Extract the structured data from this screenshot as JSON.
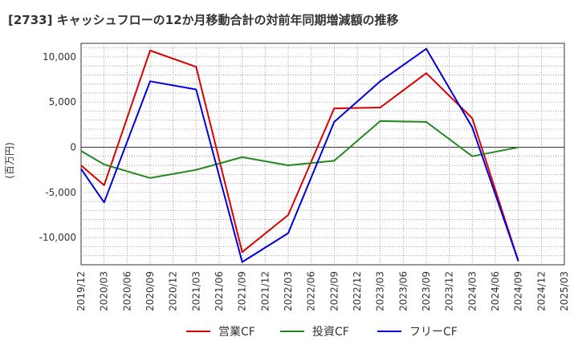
{
  "chart_data": {
    "type": "line",
    "title": "[2733]  キャッシュフローの12か月移動合計の対前年同期増減額の推移",
    "ylabel": "(百万円)",
    "xlabel": "",
    "ylim": [
      -13000,
      11500
    ],
    "yticks": [
      10000,
      5000,
      0,
      -5000,
      -10000
    ],
    "ytick_labels": [
      "10,000",
      "5,000",
      "0",
      "-5,000",
      "-10,000"
    ],
    "categories": [
      "2019/12",
      "2020/03",
      "2020/06",
      "2020/09",
      "2020/12",
      "2021/03",
      "2021/06",
      "2021/09",
      "2021/12",
      "2022/03",
      "2022/06",
      "2022/09",
      "2022/12",
      "2023/03",
      "2023/06",
      "2023/09",
      "2023/12",
      "2024/03",
      "2024/06",
      "2024/09",
      "2024/12",
      "2025/03"
    ],
    "grid": true,
    "legend_position": "bottom",
    "series": [
      {
        "name": "営業CF",
        "color": "#dd0000",
        "values": [
          -2000,
          -4200,
          null,
          10700,
          null,
          8900,
          null,
          -11600,
          null,
          -7500,
          null,
          4300,
          null,
          4400,
          null,
          8200,
          null,
          3200,
          null,
          -12600,
          null,
          null
        ]
      },
      {
        "name": "投資CF",
        "color": "#228822",
        "values": [
          -400,
          -1900,
          null,
          -3400,
          null,
          -2500,
          null,
          -1100,
          null,
          -2000,
          null,
          -1500,
          null,
          2900,
          null,
          2800,
          null,
          -1000,
          null,
          0,
          null,
          null
        ]
      },
      {
        "name": "フリーCF",
        "color": "#0000dd",
        "values": [
          -2400,
          -6100,
          null,
          7300,
          null,
          6400,
          null,
          -12700,
          null,
          -9500,
          null,
          2800,
          null,
          7300,
          null,
          10900,
          null,
          2200,
          null,
          -12600,
          null,
          null
        ]
      }
    ]
  }
}
